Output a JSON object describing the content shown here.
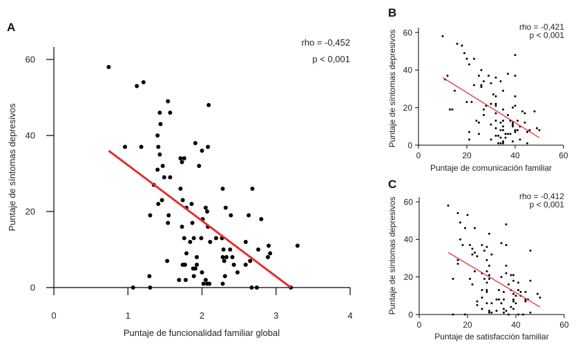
{
  "chart_data": [
    {
      "panel": "A",
      "type": "scatter",
      "xlabel": "Puntaje de funcionalidad familiar global",
      "ylabel": "Puntaje de síntomas depresivos",
      "xlim": [
        0,
        4
      ],
      "ylim": [
        0,
        60
      ],
      "xticks": [
        0,
        1,
        2,
        3,
        4
      ],
      "yticks": [
        0,
        20,
        40,
        60
      ],
      "annotation": [
        "rho = -0,452",
        "p < 0,001"
      ],
      "grid": false,
      "point_color": "#000000",
      "line_color": "#e03030",
      "fit_line": [
        [
          0.74,
          36
        ],
        [
          3.2,
          0
        ]
      ],
      "points": [
        [
          0.74,
          58
        ],
        [
          1.12,
          53
        ],
        [
          1.21,
          54
        ],
        [
          1.54,
          49
        ],
        [
          2.09,
          48
        ],
        [
          1.43,
          46
        ],
        [
          1.57,
          46
        ],
        [
          1.44,
          43
        ],
        [
          1.4,
          40
        ],
        [
          0.96,
          37
        ],
        [
          1.18,
          37
        ],
        [
          1.41,
          37
        ],
        [
          1.91,
          38
        ],
        [
          2.08,
          37
        ],
        [
          2.0,
          36
        ],
        [
          1.43,
          35
        ],
        [
          1.71,
          34
        ],
        [
          1.76,
          34
        ],
        [
          1.73,
          33
        ],
        [
          1.96,
          32
        ],
        [
          1.47,
          32
        ],
        [
          1.4,
          31
        ],
        [
          1.49,
          29
        ],
        [
          1.57,
          29
        ],
        [
          1.35,
          27
        ],
        [
          1.71,
          26
        ],
        [
          2.28,
          26
        ],
        [
          2.68,
          26
        ],
        [
          1.74,
          23
        ],
        [
          1.46,
          23
        ],
        [
          1.41,
          22
        ],
        [
          1.86,
          22
        ],
        [
          1.79,
          21
        ],
        [
          2.05,
          21
        ],
        [
          2.32,
          21
        ],
        [
          2.07,
          20
        ],
        [
          1.3,
          19
        ],
        [
          1.55,
          19
        ],
        [
          2.39,
          19
        ],
        [
          2.63,
          19
        ],
        [
          2.01,
          18
        ],
        [
          2.8,
          18
        ],
        [
          1.54,
          17
        ],
        [
          1.87,
          17
        ],
        [
          1.73,
          16
        ],
        [
          2.08,
          16
        ],
        [
          1.76,
          13
        ],
        [
          1.89,
          13
        ],
        [
          1.99,
          13
        ],
        [
          2.19,
          13
        ],
        [
          2.27,
          13
        ],
        [
          1.84,
          12
        ],
        [
          2.11,
          12
        ],
        [
          2.59,
          12
        ],
        [
          2.9,
          11
        ],
        [
          3.29,
          11
        ],
        [
          2.29,
          10
        ],
        [
          2.38,
          10
        ],
        [
          2.76,
          10
        ],
        [
          1.79,
          9
        ],
        [
          2.92,
          9
        ],
        [
          1.93,
          8
        ],
        [
          2.28,
          8
        ],
        [
          2.33,
          8
        ],
        [
          2.41,
          8
        ],
        [
          2.89,
          8
        ],
        [
          1.53,
          7
        ],
        [
          2.3,
          7
        ],
        [
          2.65,
          7
        ],
        [
          1.74,
          6
        ],
        [
          1.77,
          6
        ],
        [
          1.93,
          6
        ],
        [
          2.43,
          6
        ],
        [
          2.59,
          6
        ],
        [
          1.88,
          5
        ],
        [
          1.91,
          5
        ],
        [
          2.0,
          4
        ],
        [
          2.48,
          4
        ],
        [
          1.29,
          3
        ],
        [
          1.89,
          3
        ],
        [
          2.31,
          3
        ],
        [
          1.69,
          2
        ],
        [
          1.78,
          2
        ],
        [
          2.05,
          2
        ],
        [
          2.02,
          1
        ],
        [
          2.07,
          1
        ],
        [
          2.1,
          1
        ],
        [
          2.28,
          1
        ],
        [
          1.07,
          0
        ],
        [
          1.3,
          0
        ],
        [
          2.67,
          0
        ],
        [
          2.74,
          0
        ],
        [
          3.2,
          0
        ]
      ]
    },
    {
      "panel": "B",
      "type": "scatter",
      "xlabel": "Puntaje de comunicación familiar",
      "ylabel": "Puntaje de síntomas depresivos",
      "xlim": [
        0,
        60
      ],
      "ylim": [
        0,
        60
      ],
      "xticks": [
        0,
        20,
        40,
        60
      ],
      "yticks": [
        0,
        20,
        40,
        60
      ],
      "annotation": [
        "rho = -0,421",
        "p < 0,001"
      ],
      "grid": false,
      "point_color": "#000000",
      "line_color": "#e03030",
      "fit_line": [
        [
          10,
          36
        ],
        [
          50,
          4
        ]
      ],
      "points": [
        [
          10,
          58
        ],
        [
          16,
          54
        ],
        [
          18,
          53
        ],
        [
          19,
          49
        ],
        [
          20,
          46
        ],
        [
          23,
          46
        ],
        [
          21,
          43
        ],
        [
          40,
          48
        ],
        [
          26,
          40
        ],
        [
          12,
          37
        ],
        [
          25,
          37
        ],
        [
          29,
          37
        ],
        [
          40,
          37
        ],
        [
          37,
          38
        ],
        [
          32,
          36
        ],
        [
          11,
          35
        ],
        [
          27,
          34
        ],
        [
          34,
          34
        ],
        [
          30,
          33
        ],
        [
          23,
          32
        ],
        [
          26,
          32
        ],
        [
          26,
          31
        ],
        [
          15,
          29
        ],
        [
          35,
          29
        ],
        [
          31,
          27
        ],
        [
          32,
          26
        ],
        [
          40,
          26
        ],
        [
          20,
          23
        ],
        [
          22,
          23
        ],
        [
          30,
          22
        ],
        [
          32,
          22
        ],
        [
          32,
          21
        ],
        [
          28,
          21
        ],
        [
          40,
          21
        ],
        [
          39,
          20
        ],
        [
          13,
          19
        ],
        [
          14,
          19
        ],
        [
          27,
          19
        ],
        [
          35,
          19
        ],
        [
          43,
          18
        ],
        [
          48,
          18
        ],
        [
          44,
          17
        ],
        [
          32,
          17
        ],
        [
          37,
          16
        ],
        [
          27,
          16
        ],
        [
          24,
          13
        ],
        [
          32,
          13
        ],
        [
          35,
          13
        ],
        [
          38,
          13
        ],
        [
          41,
          13
        ],
        [
          25,
          12
        ],
        [
          34,
          12
        ],
        [
          39,
          12
        ],
        [
          44,
          12
        ],
        [
          30,
          11
        ],
        [
          39,
          11
        ],
        [
          39,
          10
        ],
        [
          35,
          10
        ],
        [
          42,
          10
        ],
        [
          32,
          9
        ],
        [
          49,
          9
        ],
        [
          34,
          8
        ],
        [
          35,
          8
        ],
        [
          40,
          8
        ],
        [
          41,
          8
        ],
        [
          46,
          8
        ],
        [
          50,
          8
        ],
        [
          21,
          7
        ],
        [
          40,
          7
        ],
        [
          45,
          7
        ],
        [
          25,
          6
        ],
        [
          36,
          6
        ],
        [
          37,
          6
        ],
        [
          38,
          6
        ],
        [
          32,
          5
        ],
        [
          33,
          5
        ],
        [
          34,
          4
        ],
        [
          36,
          4
        ],
        [
          21,
          3
        ],
        [
          30,
          3
        ],
        [
          42,
          3
        ],
        [
          35,
          2
        ],
        [
          39,
          2
        ],
        [
          33,
          1
        ],
        [
          34,
          1
        ],
        [
          35,
          1
        ],
        [
          45,
          1
        ]
      ]
    },
    {
      "panel": "C",
      "type": "scatter",
      "xlabel": "Puntaje de satisfacción familiar",
      "ylabel": "Puntaje de síntomas depresivos",
      "xlim": [
        0,
        60
      ],
      "ylim": [
        0,
        60
      ],
      "xticks": [
        0,
        20,
        40,
        60
      ],
      "yticks": [
        0,
        20,
        40,
        60
      ],
      "annotation": [
        "rho = -0,412",
        "p < 0,001"
      ],
      "grid": false,
      "point_color": "#000000",
      "line_color": "#e03030",
      "fit_line": [
        [
          12,
          33
        ],
        [
          50,
          4
        ]
      ],
      "points": [
        [
          12,
          58
        ],
        [
          16,
          54
        ],
        [
          20,
          53
        ],
        [
          17,
          49
        ],
        [
          19,
          46
        ],
        [
          23,
          46
        ],
        [
          36,
          48
        ],
        [
          29,
          43
        ],
        [
          17,
          40
        ],
        [
          34,
          38
        ],
        [
          18,
          37
        ],
        [
          21,
          37
        ],
        [
          26,
          37
        ],
        [
          36,
          37
        ],
        [
          28,
          36
        ],
        [
          22,
          35
        ],
        [
          27,
          34
        ],
        [
          46,
          34
        ],
        [
          23,
          33
        ],
        [
          22,
          32
        ],
        [
          30,
          32
        ],
        [
          24,
          31
        ],
        [
          16,
          29
        ],
        [
          28,
          29
        ],
        [
          16,
          27
        ],
        [
          29,
          26
        ],
        [
          36,
          26
        ],
        [
          23,
          23
        ],
        [
          28,
          23
        ],
        [
          26,
          22
        ],
        [
          36,
          22
        ],
        [
          29,
          21
        ],
        [
          38,
          21
        ],
        [
          39,
          21
        ],
        [
          14,
          19
        ],
        [
          21,
          19
        ],
        [
          27,
          19
        ],
        [
          29,
          19
        ],
        [
          34,
          20
        ],
        [
          28,
          17
        ],
        [
          41,
          17
        ],
        [
          39,
          18
        ],
        [
          46,
          18
        ],
        [
          22,
          16
        ],
        [
          37,
          16
        ],
        [
          26,
          13
        ],
        [
          28,
          13
        ],
        [
          28,
          12
        ],
        [
          33,
          13
        ],
        [
          38,
          13
        ],
        [
          41,
          13
        ],
        [
          35,
          12
        ],
        [
          42,
          12
        ],
        [
          44,
          12
        ],
        [
          49,
          11
        ],
        [
          39,
          11
        ],
        [
          42,
          10
        ],
        [
          40,
          10
        ],
        [
          26,
          9
        ],
        [
          50,
          9
        ],
        [
          32,
          8
        ],
        [
          33,
          8
        ],
        [
          35,
          8
        ],
        [
          39,
          8
        ],
        [
          44,
          8
        ],
        [
          45,
          8
        ],
        [
          24,
          7
        ],
        [
          39,
          7
        ],
        [
          44,
          7
        ],
        [
          28,
          6
        ],
        [
          30,
          6
        ],
        [
          34,
          6
        ],
        [
          40,
          6
        ],
        [
          24,
          5
        ],
        [
          38,
          4
        ],
        [
          26,
          3
        ],
        [
          35,
          3
        ],
        [
          39,
          3
        ],
        [
          32,
          2
        ],
        [
          36,
          2
        ],
        [
          29,
          2
        ],
        [
          29,
          1
        ],
        [
          30,
          1
        ],
        [
          35,
          1
        ],
        [
          46,
          1
        ],
        [
          14,
          0
        ],
        [
          19,
          0
        ],
        [
          37,
          0
        ],
        [
          41,
          0
        ],
        [
          43,
          0
        ]
      ]
    }
  ]
}
